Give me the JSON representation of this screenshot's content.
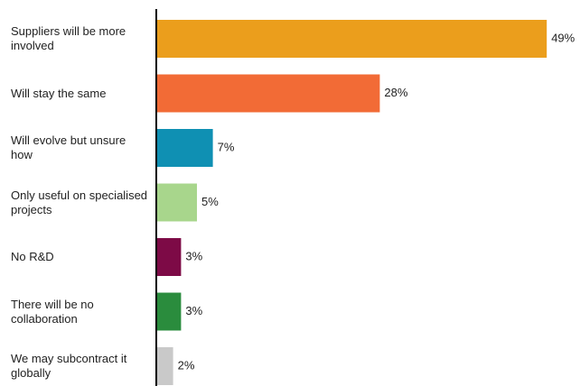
{
  "chart_data": {
    "type": "hbar",
    "categories": [
      "Suppliers will be more involved",
      "Will stay the same",
      "Will evolve but unsure how",
      "Only useful on specialised projects",
      "No R&D",
      "There will be no collaboration",
      "We may subcontract it globally"
    ],
    "values": [
      49,
      28,
      7,
      5,
      3,
      3,
      2
    ],
    "value_labels": [
      "49%",
      "28%",
      "7%",
      "5%",
      "3%",
      "3%",
      "2%"
    ],
    "colors": [
      "#eb9e1c",
      "#f26b36",
      "#0f90b3",
      "#a8d68c",
      "#7d0a46",
      "#2a8c3d",
      "#c9c9c9"
    ]
  }
}
